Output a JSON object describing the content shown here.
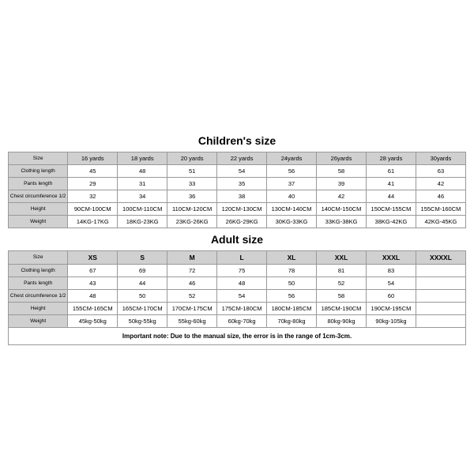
{
  "children": {
    "title": "Children's size",
    "row_labels": [
      "Size",
      "Clothing length",
      "Pants length",
      "Chest circumference 1/2",
      "Height",
      "Weight"
    ],
    "sizes": [
      "16 yards",
      "18 yards",
      "20 yards",
      "22 yards",
      "24yards",
      "26yards",
      "28 yards",
      "30yards"
    ],
    "clothing_length": [
      "45",
      "48",
      "51",
      "54",
      "56",
      "58",
      "61",
      "63"
    ],
    "pants_length": [
      "29",
      "31",
      "33",
      "35",
      "37",
      "39",
      "41",
      "42"
    ],
    "chest": [
      "32",
      "34",
      "36",
      "38",
      "40",
      "42",
      "44",
      "46"
    ],
    "height": [
      "90CM-100CM",
      "100CM-110CM",
      "110CM-120CM",
      "120CM-130CM",
      "130CM-140CM",
      "140CM-150CM",
      "150CM-155CM",
      "155CM-160CM"
    ],
    "weight": [
      "14KG-17KG",
      "18KG-23KG",
      "23KG-26KG",
      "26KG-29KG",
      "30KG-33KG",
      "33KG-38KG",
      "38KG-42KG",
      "42KG-45KG"
    ]
  },
  "adult": {
    "title": "Adult size",
    "row_labels": [
      "Size",
      "Clothing length",
      "Pants length",
      "Chest circumference 1/2",
      "Height",
      "Weight"
    ],
    "sizes": [
      "XS",
      "S",
      "M",
      "L",
      "XL",
      "XXL",
      "XXXL",
      "XXXXL"
    ],
    "clothing_length": [
      "67",
      "69",
      "72",
      "75",
      "78",
      "81",
      "83",
      ""
    ],
    "pants_length": [
      "43",
      "44",
      "46",
      "48",
      "50",
      "52",
      "54",
      ""
    ],
    "chest": [
      "48",
      "50",
      "52",
      "54",
      "56",
      "58",
      "60",
      ""
    ],
    "height": [
      "155CM-165CM",
      "165CM-170CM",
      "170CM-175CM",
      "175CM-180CM",
      "180CM-185CM",
      "185CM-190CM",
      "190CM-195CM",
      ""
    ],
    "weight": [
      "45kg-50kg",
      "50kg-55kg",
      "55kg-60kg",
      "60kg-70kg",
      "70kg-80kg",
      "80kg-90kg",
      "90kg-105kg",
      ""
    ]
  },
  "footnote": "Important note: Due to the manual size, the error is in the range of 1cm-3cm."
}
